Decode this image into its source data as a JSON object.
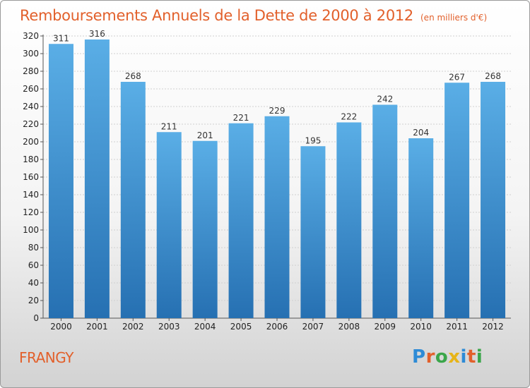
{
  "chart_data": {
    "type": "bar",
    "title": "Remboursements Annuels de la Dette de 2000 à 2012",
    "unit_note": "(en milliers d'€)",
    "categories": [
      "2000",
      "2001",
      "2002",
      "2003",
      "2004",
      "2005",
      "2006",
      "2007",
      "2008",
      "2009",
      "2010",
      "2011",
      "2012"
    ],
    "values": [
      311,
      316,
      268,
      211,
      201,
      221,
      229,
      195,
      222,
      242,
      204,
      267,
      268
    ],
    "ylim": [
      0,
      320
    ],
    "yticks": [
      0,
      20,
      40,
      60,
      80,
      100,
      120,
      140,
      160,
      180,
      200,
      220,
      240,
      260,
      280,
      300,
      320
    ],
    "grid": true,
    "colors": {
      "bar_light": "#5aaee6",
      "bar_dark": "#2670b2",
      "title": "#e2602b"
    }
  },
  "footer": {
    "place": "FRANGY"
  },
  "logo": {
    "text": "Proxiti"
  }
}
